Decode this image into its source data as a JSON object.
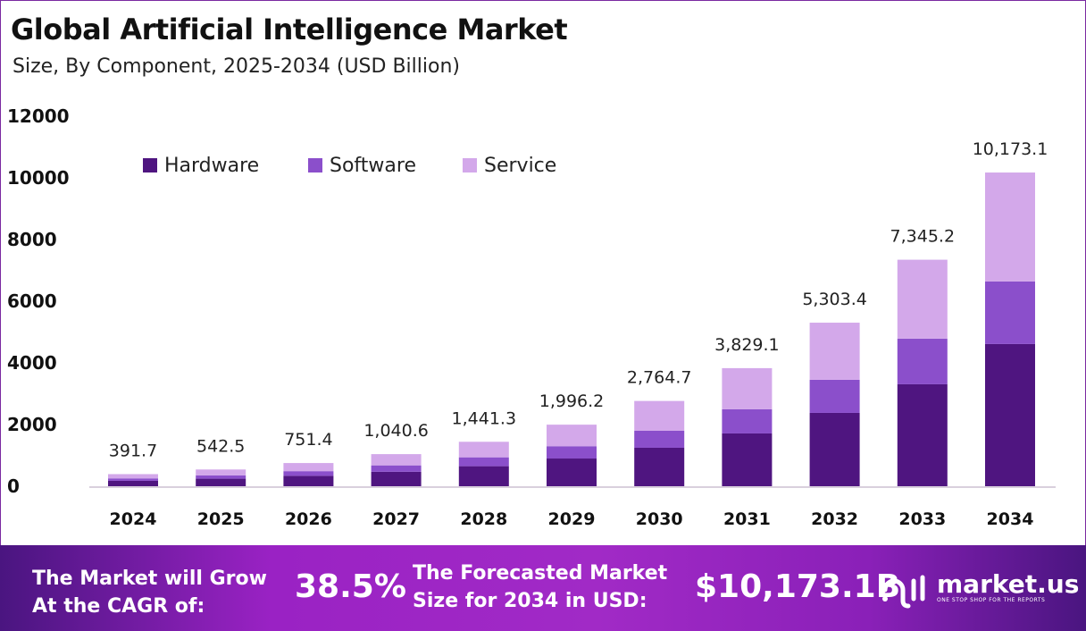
{
  "header": {
    "title": "Global Artificial Intelligence Market",
    "subtitle": "Size, By Component, 2025-2034 (USD Billion)"
  },
  "chart_data": {
    "type": "bar",
    "stacked": true,
    "categories": [
      "2024",
      "2025",
      "2026",
      "2027",
      "2028",
      "2029",
      "2030",
      "2031",
      "2032",
      "2033",
      "2034"
    ],
    "series": [
      {
        "name": "Hardware",
        "color": "#4f1580",
        "values": [
          176,
          244,
          338,
          468,
          649,
          898,
          1247,
          1711,
          2378,
          3306,
          4611
        ]
      },
      {
        "name": "Software",
        "color": "#8b4fcb",
        "values": [
          78,
          109,
          150,
          208,
          288,
          399,
          551,
          783,
          1073,
          1479,
          2030
        ]
      },
      {
        "name": "Service",
        "color": "#d3a8ea",
        "values": [
          137.7,
          189.5,
          263.4,
          364.6,
          504.3,
          699.2,
          966.7,
          1335.1,
          1852.4,
          2560.2,
          3532.1
        ]
      }
    ],
    "totals": [
      "391.7",
      "542.5",
      "751.4",
      "1,040.6",
      "1,441.3",
      "1,996.2",
      "2,764.7",
      "3,829.1",
      "5,303.4",
      "7,345.2",
      "10,173.1"
    ],
    "yticks": [
      "0",
      "2000",
      "4000",
      "6000",
      "8000",
      "10000",
      "12000"
    ],
    "ylim": [
      0,
      12000
    ],
    "xlabel": "",
    "ylabel": "",
    "grid": false,
    "legend": "top-left"
  },
  "footer": {
    "cagr_label_1": "The Market will Grow",
    "cagr_label_2": "At the CAGR of:",
    "cagr_value": "38.5%",
    "forecast_label_1": "The Forecasted Market",
    "forecast_label_2": "Size for 2034 in USD:",
    "forecast_value": "$10,173.1B",
    "logo_name": "market.us",
    "logo_tagline": "ONE STOP SHOP FOR THE REPORTS"
  }
}
